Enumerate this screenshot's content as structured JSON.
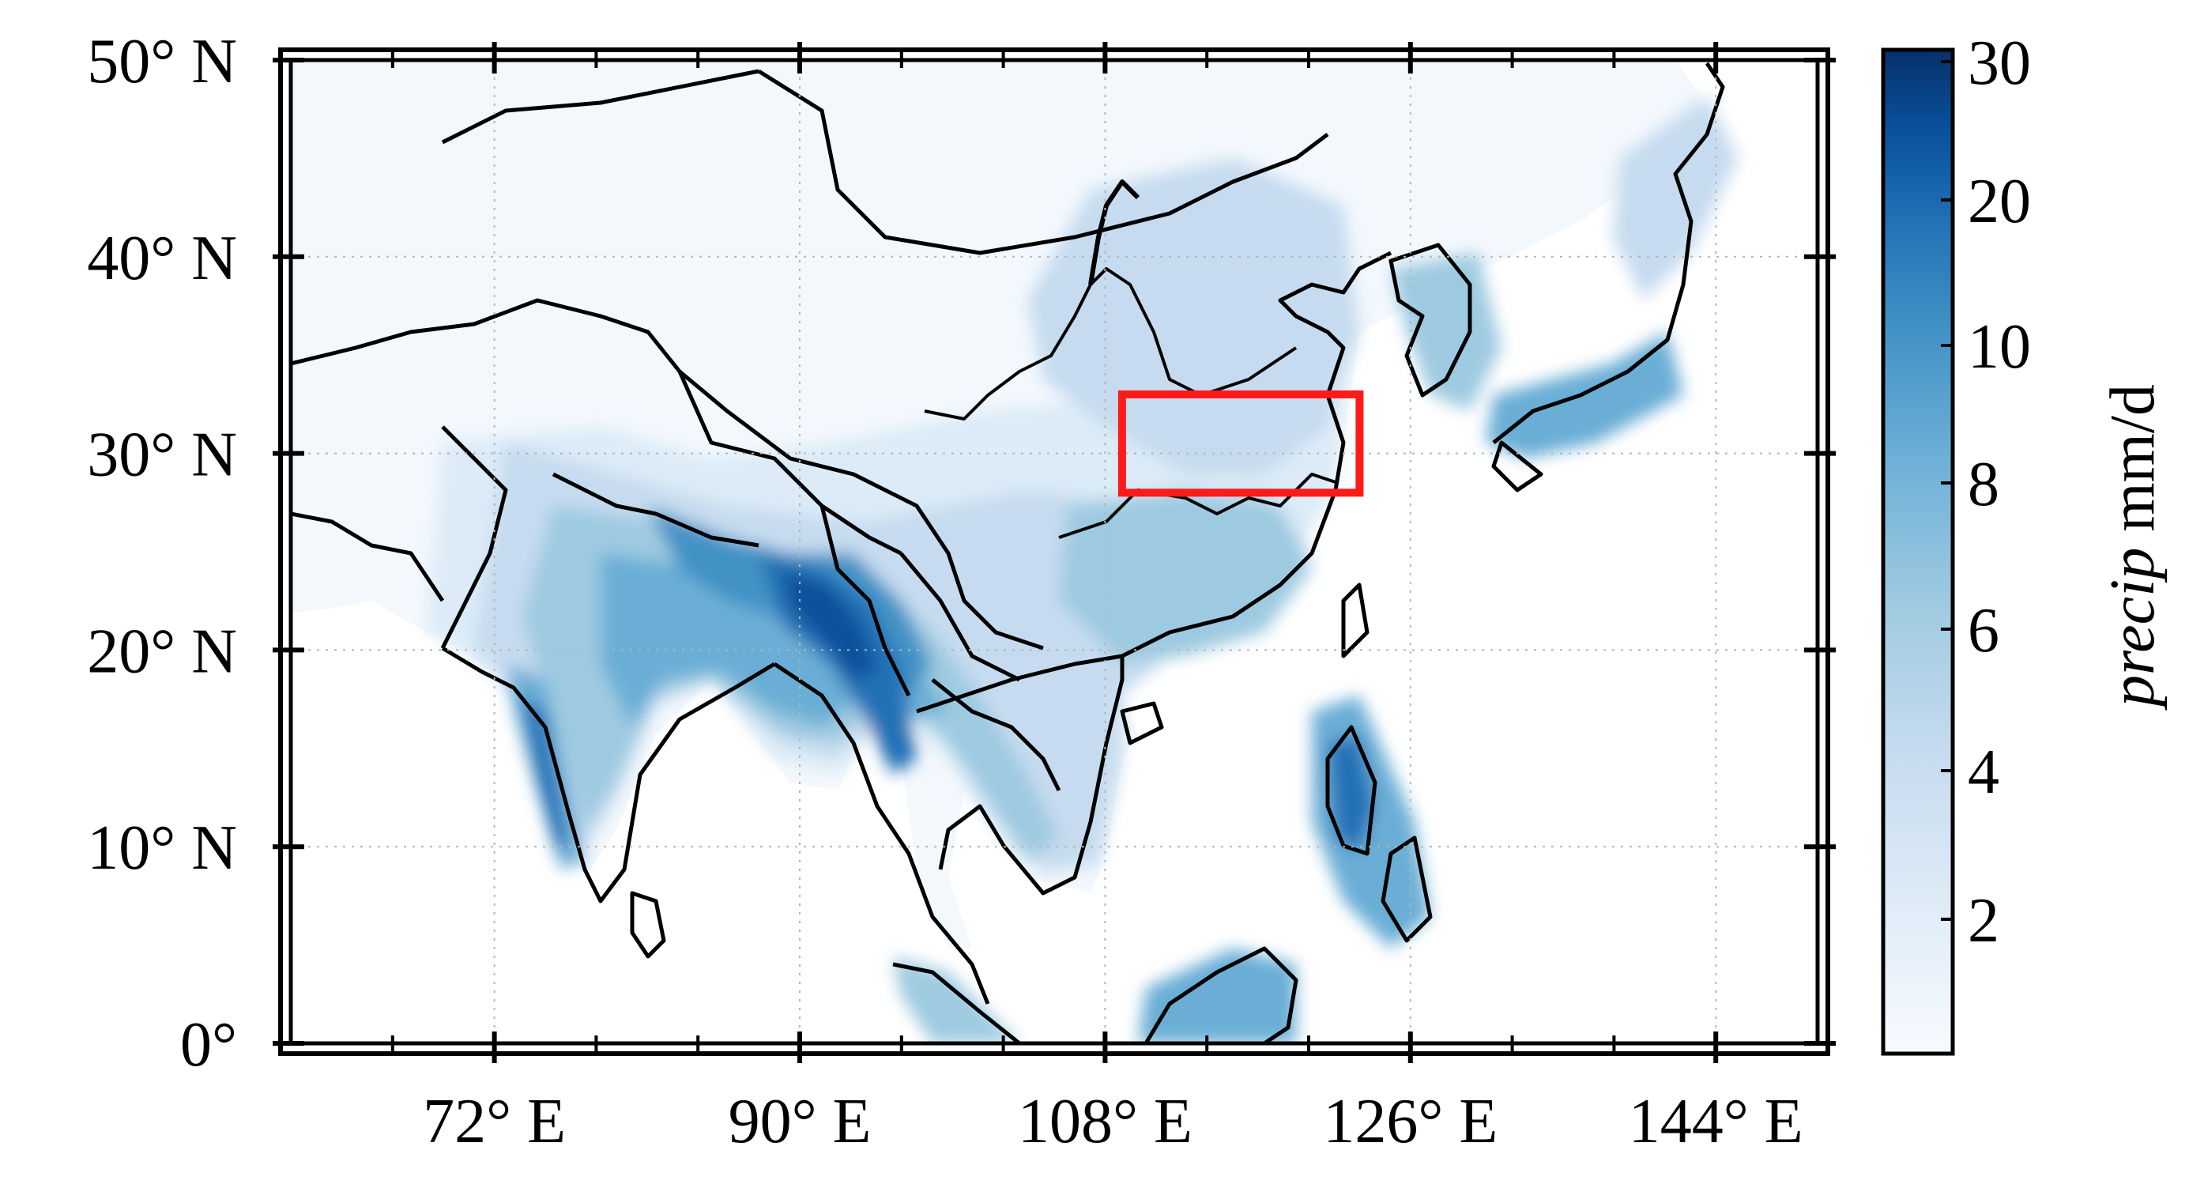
{
  "map": {
    "lat_labels": [
      "50° N",
      "40° N",
      "30° N",
      "20° N",
      "10° N",
      "0°"
    ],
    "lon_labels": [
      "72° E",
      "90° E",
      "108° E",
      "126° E",
      "144° E"
    ],
    "lat_values": [
      50,
      40,
      30,
      20,
      10,
      0
    ],
    "lon_values": [
      72,
      90,
      108,
      126,
      144
    ],
    "extent": {
      "lon_min": 60,
      "lon_max": 150,
      "lat_min": 0,
      "lat_max": 50
    },
    "highlight_box": {
      "lon_min": 109,
      "lon_max": 123,
      "lat_min": 28,
      "lat_max": 33,
      "color": "#ff1a1a"
    },
    "colors": {
      "land_low": "#f4f9fd",
      "ocean": "#ffffff",
      "coast": "#000000"
    }
  },
  "colorbar": {
    "title_italic": "precip",
    "title_unit": " mm/d",
    "tick_labels": [
      "30",
      "20",
      "10",
      "8",
      "6",
      "4",
      "2"
    ],
    "colors": [
      "#f7fbff",
      "#deebf7",
      "#c6dbef",
      "#9ecae1",
      "#6baed6",
      "#4292c6",
      "#2171b5",
      "#08519c",
      "#08306b"
    ]
  }
}
